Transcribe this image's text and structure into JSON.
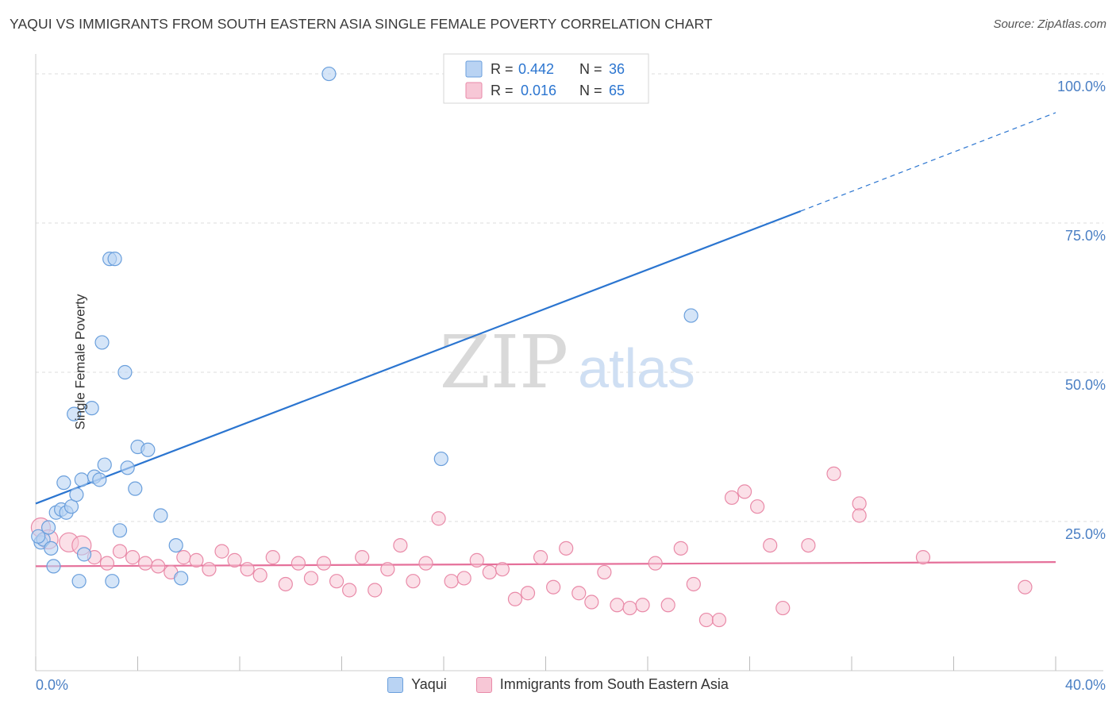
{
  "header": {
    "title": "YAQUI VS IMMIGRANTS FROM SOUTH EASTERN ASIA SINGLE FEMALE POVERTY CORRELATION CHART",
    "source": "Source: ZipAtlas.com"
  },
  "watermark": {
    "zip": "ZIP",
    "atlas": "atlas"
  },
  "colors": {
    "blue": "#6a9fdc",
    "blue_fill": "#b9d3f3",
    "blue_line": "#2b75d0",
    "pink": "#e98aa8",
    "pink_fill": "#f7c7d6",
    "pink_line": "#e5709a",
    "axis_text": "#4a7fc4",
    "grid": "#dddddd"
  },
  "chart_data": {
    "type": "scatter",
    "title": "YAQUI VS IMMIGRANTS FROM SOUTH EASTERN ASIA SINGLE FEMALE POVERTY CORRELATION CHART",
    "xlabel": "",
    "ylabel": "Single Female Poverty",
    "xlim": [
      0,
      40
    ],
    "ylim": [
      0,
      102
    ],
    "x_tick_labels": [
      "0.0%",
      "40.0%"
    ],
    "y_ticks": [
      25,
      50,
      75,
      100
    ],
    "y_tick_labels": [
      "25.0%",
      "50.0%",
      "75.0%",
      "100.0%"
    ],
    "grid": true,
    "legend_position": "top-center",
    "stats": [
      {
        "r_label": "R =",
        "r_value": "0.442",
        "n_label": "N =",
        "n_value": "36"
      },
      {
        "r_label": "R =",
        "r_value": "0.016",
        "n_label": "N =",
        "n_value": "65"
      }
    ],
    "series": [
      {
        "name": "Yaqui",
        "color": "#6a9fdc",
        "trend": {
          "x_start": 0,
          "y_start": 28.0,
          "x_solid_end": 30,
          "y_solid_end": 77.0,
          "x_end": 40,
          "y_end": 93.5
        },
        "points": [
          [
            0.2,
            21.5
          ],
          [
            0.3,
            22.0
          ],
          [
            0.5,
            24.0
          ],
          [
            0.6,
            20.5
          ],
          [
            0.7,
            17.5
          ],
          [
            0.8,
            26.5
          ],
          [
            1.0,
            27.0
          ],
          [
            1.1,
            31.5
          ],
          [
            1.2,
            26.5
          ],
          [
            1.4,
            27.5
          ],
          [
            1.5,
            43.0
          ],
          [
            1.6,
            29.5
          ],
          [
            1.7,
            15.0
          ],
          [
            1.8,
            32.0
          ],
          [
            1.9,
            19.5
          ],
          [
            2.2,
            44.0
          ],
          [
            2.3,
            32.5
          ],
          [
            2.5,
            32.0
          ],
          [
            2.6,
            55.0
          ],
          [
            2.7,
            34.5
          ],
          [
            2.9,
            69.0
          ],
          [
            3.0,
            15.0
          ],
          [
            3.1,
            69.0
          ],
          [
            3.3,
            23.5
          ],
          [
            3.5,
            50.0
          ],
          [
            3.6,
            34.0
          ],
          [
            3.9,
            30.5
          ],
          [
            4.0,
            37.5
          ],
          [
            4.4,
            37.0
          ],
          [
            4.9,
            26.0
          ],
          [
            5.5,
            21.0
          ],
          [
            5.7,
            15.5
          ],
          [
            11.5,
            100.0
          ],
          [
            15.9,
            35.5
          ],
          [
            25.7,
            59.5
          ],
          [
            0.1,
            22.5
          ]
        ]
      },
      {
        "name": "Immigrants from South Eastern Asia",
        "color": "#e98aa8",
        "trend": {
          "x_start": 0,
          "y_start": 17.5,
          "x_end": 40,
          "y_end": 18.2
        },
        "points": [
          [
            0.2,
            24.0
          ],
          [
            0.5,
            22.0
          ],
          [
            1.3,
            21.5
          ],
          [
            1.8,
            21.0
          ],
          [
            2.3,
            19.0
          ],
          [
            2.8,
            18.0
          ],
          [
            3.3,
            20.0
          ],
          [
            3.8,
            19.0
          ],
          [
            4.3,
            18.0
          ],
          [
            4.8,
            17.5
          ],
          [
            5.3,
            16.5
          ],
          [
            5.8,
            19.0
          ],
          [
            6.3,
            18.5
          ],
          [
            6.8,
            17.0
          ],
          [
            7.3,
            20.0
          ],
          [
            7.8,
            18.5
          ],
          [
            8.3,
            17.0
          ],
          [
            8.8,
            16.0
          ],
          [
            9.3,
            19.0
          ],
          [
            9.8,
            14.5
          ],
          [
            10.3,
            18.0
          ],
          [
            10.8,
            15.5
          ],
          [
            11.3,
            18.0
          ],
          [
            11.8,
            15.0
          ],
          [
            12.3,
            13.5
          ],
          [
            12.8,
            19.0
          ],
          [
            13.3,
            13.5
          ],
          [
            13.8,
            17.0
          ],
          [
            14.3,
            21.0
          ],
          [
            14.8,
            15.0
          ],
          [
            15.3,
            18.0
          ],
          [
            15.8,
            25.5
          ],
          [
            16.3,
            15.0
          ],
          [
            16.8,
            15.5
          ],
          [
            17.3,
            18.5
          ],
          [
            17.8,
            16.5
          ],
          [
            18.3,
            17.0
          ],
          [
            18.8,
            12.0
          ],
          [
            19.3,
            13.0
          ],
          [
            19.8,
            19.0
          ],
          [
            20.3,
            14.0
          ],
          [
            20.8,
            20.5
          ],
          [
            21.3,
            13.0
          ],
          [
            21.8,
            11.5
          ],
          [
            22.3,
            16.5
          ],
          [
            22.8,
            11.0
          ],
          [
            23.3,
            10.5
          ],
          [
            23.8,
            11.0
          ],
          [
            24.3,
            18.0
          ],
          [
            24.8,
            11.0
          ],
          [
            25.3,
            20.5
          ],
          [
            25.8,
            14.5
          ],
          [
            26.3,
            8.5
          ],
          [
            26.8,
            8.5
          ],
          [
            27.3,
            29.0
          ],
          [
            27.8,
            30.0
          ],
          [
            28.3,
            27.5
          ],
          [
            28.8,
            21.0
          ],
          [
            29.3,
            10.5
          ],
          [
            30.3,
            21.0
          ],
          [
            31.3,
            33.0
          ],
          [
            32.3,
            28.0
          ],
          [
            32.3,
            26.0
          ],
          [
            34.8,
            19.0
          ],
          [
            38.8,
            14.0
          ]
        ]
      }
    ]
  }
}
